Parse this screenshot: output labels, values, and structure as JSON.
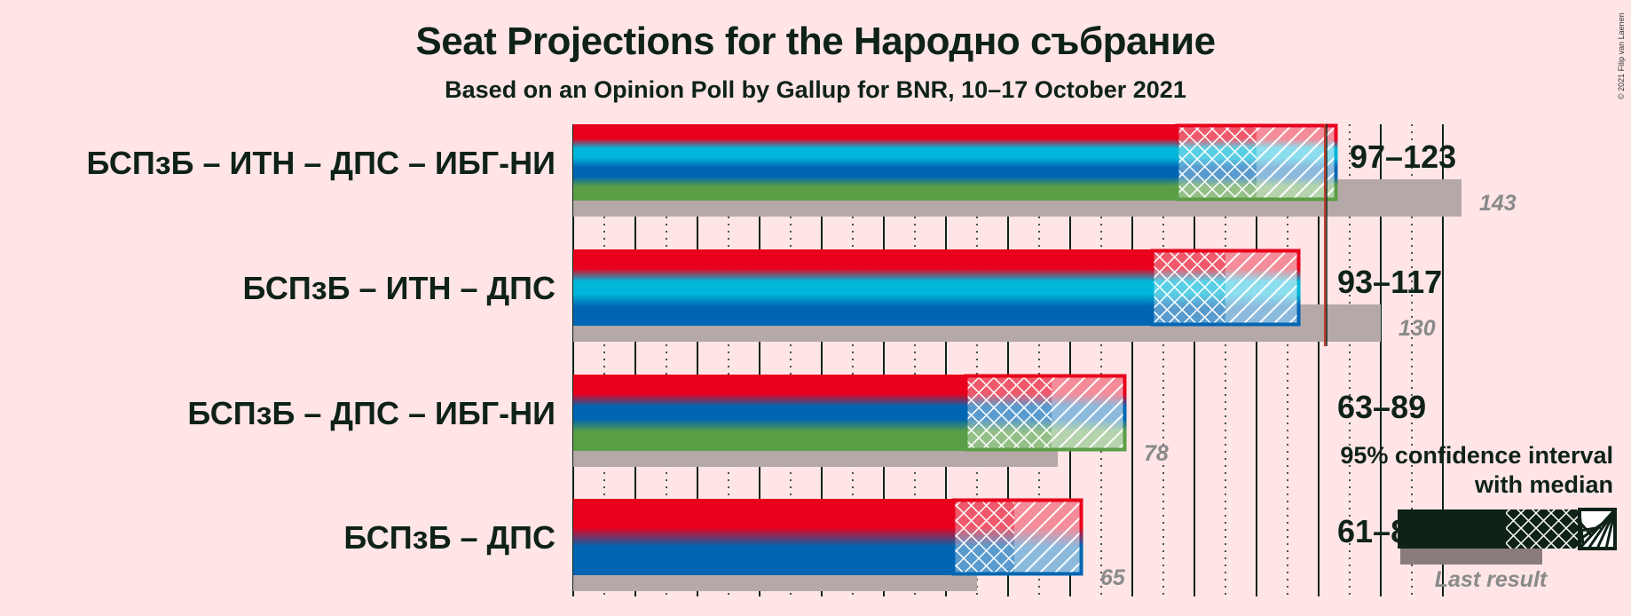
{
  "chart_data": {
    "type": "bar",
    "title": "Seat Projections for the Народно събрание",
    "subtitle": "Based on an Opinion Poll by Gallup for BNR, 10–17 October 2021",
    "copyright": "© 2021 Filip van Laenen",
    "majority": 121,
    "xlim": [
      0,
      145
    ],
    "grid": true,
    "legend": {
      "title": "95% confidence interval\nwith median",
      "last_result_label": "Last result",
      "placement": "bottom-right"
    },
    "colors": {
      "bsp": "#e8001c",
      "itn": "#00b6d9",
      "dps": "#0066b3",
      "ibg": "#5a9e46",
      "last": "#b5a8a8",
      "majority": "#c0392b",
      "dark": "#0e2218"
    },
    "categories": [
      "БСПзБ – ИТН – ДПС – ИБГ-НИ",
      "БСПзБ – ИТН – ДПС",
      "БСПзБ – ДПС – ИБГ-НИ",
      "БСПзБ – ДПС"
    ],
    "series": [
      {
        "low": 97,
        "median": 110,
        "high": 123,
        "range_label": "97–123",
        "last": 143,
        "last_label": "143",
        "parties": [
          "bsp",
          "itn",
          "dps",
          "ibg"
        ]
      },
      {
        "low": 93,
        "median": 105,
        "high": 117,
        "range_label": "93–117",
        "last": 130,
        "last_label": "130",
        "parties": [
          "bsp",
          "itn",
          "dps"
        ]
      },
      {
        "low": 63,
        "median": 77,
        "high": 89,
        "range_label": "63–89",
        "last": 78,
        "last_label": "78",
        "parties": [
          "bsp",
          "dps",
          "ibg"
        ]
      },
      {
        "low": 61,
        "median": 71,
        "high": 82,
        "range_label": "61–82",
        "last": 65,
        "last_label": "65",
        "parties": [
          "bsp",
          "dps"
        ]
      }
    ]
  }
}
